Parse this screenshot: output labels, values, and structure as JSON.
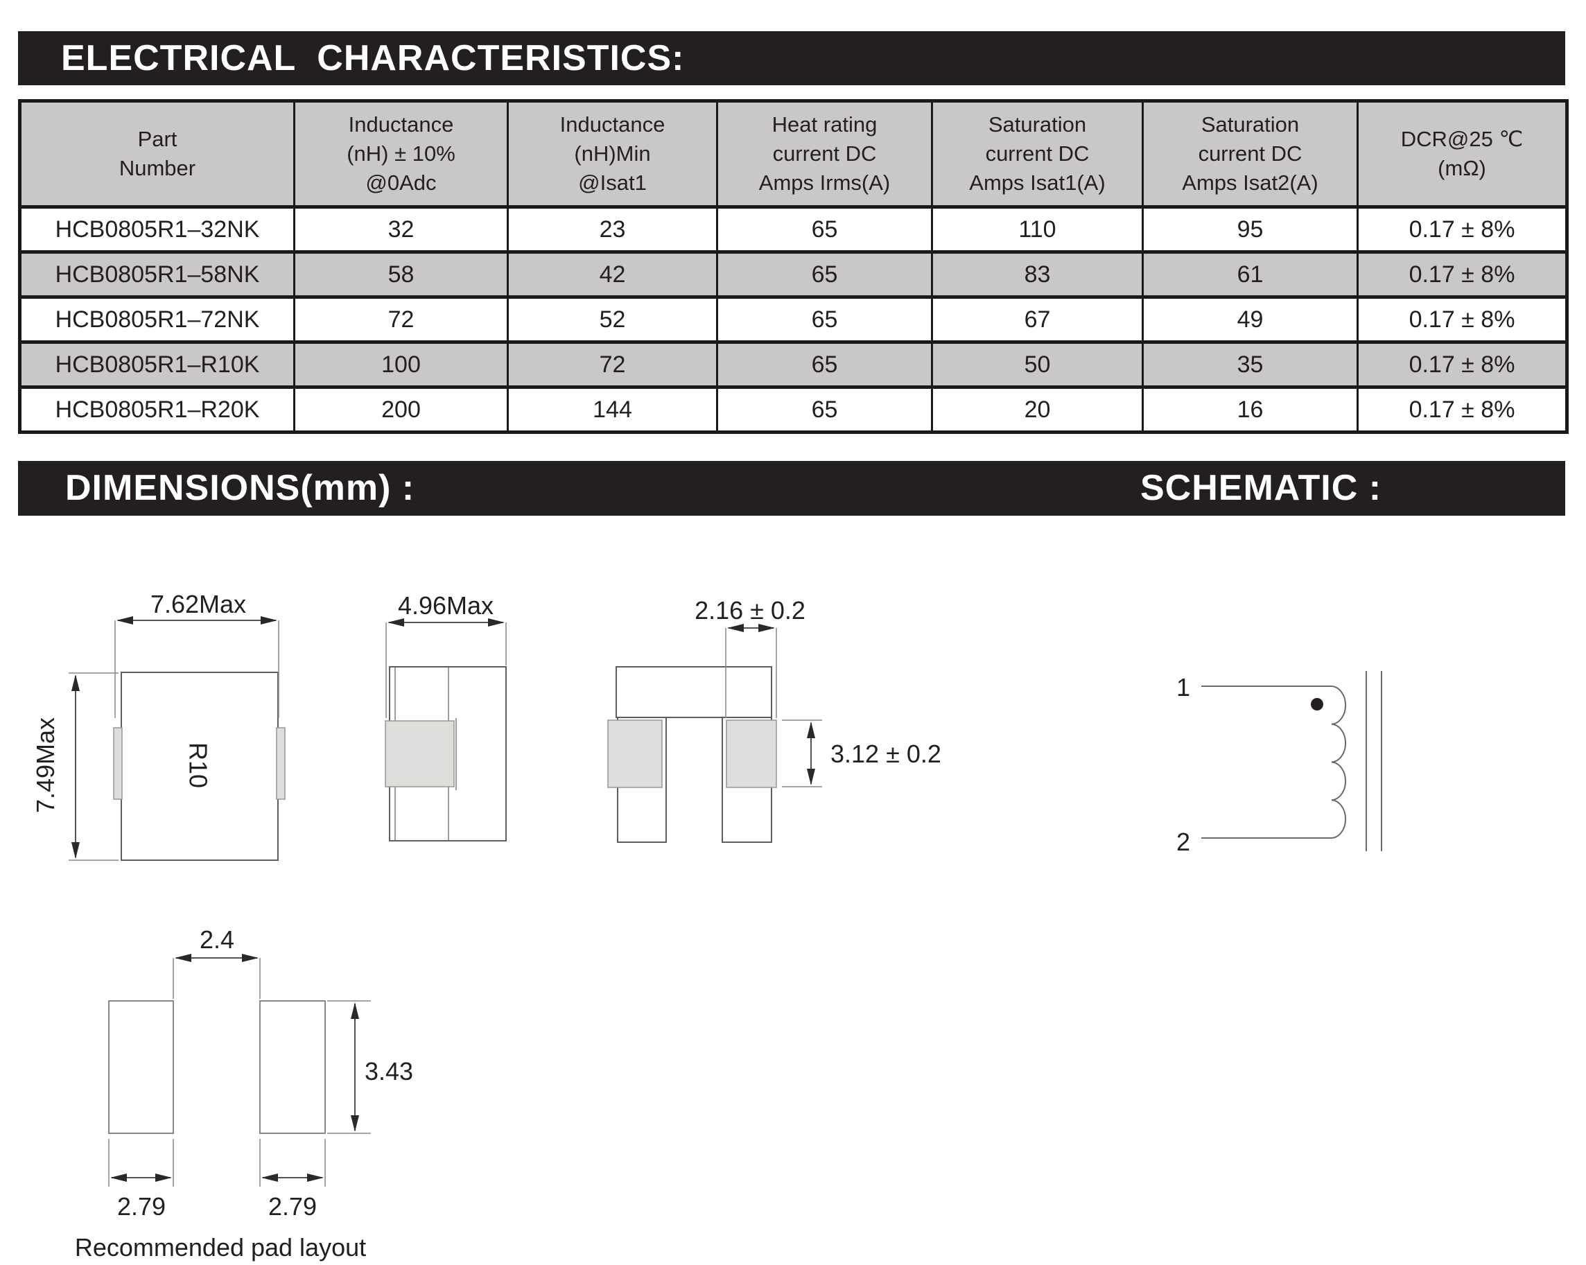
{
  "sections": {
    "electrical": {
      "title": "ELECTRICAL  CHARACTERISTICS:"
    },
    "dimensions": {
      "title": "DIMENSIONS(mm) :"
    },
    "schematic": {
      "title": "SCHEMATIC :"
    }
  },
  "table": {
    "headers": [
      [
        "Part",
        "Number"
      ],
      [
        "Inductance",
        "(nH) ± 10%",
        "@0Adc"
      ],
      [
        "Inductance",
        "(nH)Min",
        "@Isat1"
      ],
      [
        "Heat rating",
        "current DC",
        "Amps Irms(A)"
      ],
      [
        "Saturation",
        "current DC",
        "Amps Isat1(A)"
      ],
      [
        "Saturation",
        "current DC",
        "Amps Isat2(A)"
      ],
      [
        "DCR@25 ℃",
        "(mΩ)"
      ]
    ],
    "rows": [
      [
        "HCB0805R1–32NK",
        "32",
        "23",
        "65",
        "110",
        "95",
        "0.17 ± 8%"
      ],
      [
        "HCB0805R1–58NK",
        "58",
        "42",
        "65",
        "83",
        "61",
        "0.17 ± 8%"
      ],
      [
        "HCB0805R1–72NK",
        "72",
        "52",
        "65",
        "67",
        "49",
        "0.17 ± 8%"
      ],
      [
        "HCB0805R1–R10K",
        "100",
        "72",
        "65",
        "50",
        "35",
        "0.17 ± 8%"
      ],
      [
        "HCB0805R1–R20K",
        "200",
        "144",
        "65",
        "20",
        "16",
        "0.17 ± 8%"
      ]
    ]
  },
  "drawings": {
    "top_view": {
      "label": "R10",
      "dim_width": "7.62Max",
      "dim_height": "7.49Max"
    },
    "side_view": {
      "dim_width": "4.96Max"
    },
    "end_view": {
      "dim_pad_width": "2.16 ± 0.2",
      "dim_pad_height": "3.12 ± 0.2"
    },
    "pad_layout": {
      "dim_gap": "2.4",
      "dim_height": "3.43",
      "dim_pad_left": "2.79",
      "dim_pad_right": "2.79",
      "caption": "Recommended pad layout"
    },
    "schematic": {
      "pin1": "1",
      "pin2": "2"
    }
  },
  "colors": {
    "bar_bg": "#231f20",
    "bar_text": "#ffffff",
    "cell_gray": "#c9c8c6",
    "table_border": "#1c1a19",
    "pad_fill": "#dedddb",
    "ink": "#231f20"
  }
}
